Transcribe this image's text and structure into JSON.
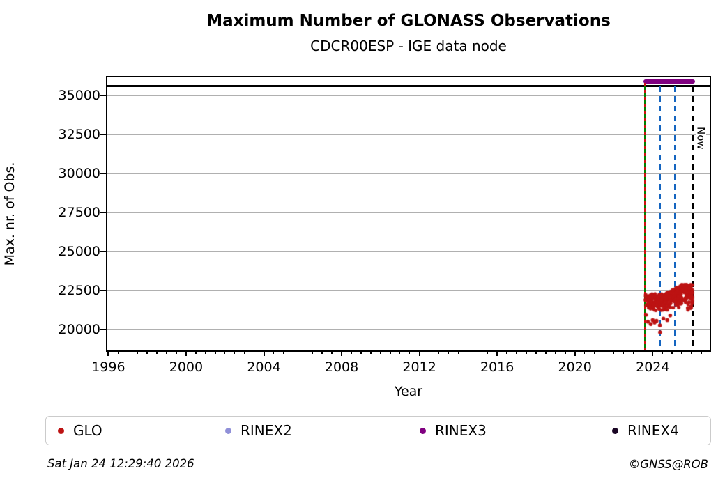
{
  "chart_data": {
    "type": "scatter",
    "title": "Maximum Number of GLONASS Observations",
    "subtitle": "CDCR00ESP - IGE data node",
    "xlabel": "Year",
    "ylabel": "Max. nr. of Obs.",
    "xlim": [
      1995.95,
      2026.93
    ],
    "ylim": [
      18660,
      36160
    ],
    "xticks": [
      1996,
      2000,
      2004,
      2008,
      2012,
      2016,
      2020,
      2024
    ],
    "x_minor_step": 0.5,
    "yticks": [
      20000,
      22500,
      25000,
      27500,
      30000,
      32500,
      35000
    ],
    "grid": {
      "horizontal": true,
      "vertical": false,
      "color": "#b0b0b0"
    },
    "legend_position": "bottom",
    "max_obs_line": {
      "value": 35600,
      "color": "#000000",
      "span": "full-width"
    },
    "rinex3_max_line": {
      "value": 35900,
      "x_start": 2023.62,
      "x_end": 2026.07,
      "color": "#800080"
    },
    "event_lines": [
      {
        "x": 2023.62,
        "style": "solid-green-with-red-dashes",
        "colors": [
          "#008000",
          "#cc1111"
        ],
        "label": ""
      },
      {
        "x": 2024.37,
        "style": "dashed",
        "color": "#1565c0",
        "label": ""
      },
      {
        "x": 2025.16,
        "style": "dashed",
        "color": "#1565c0",
        "label": ""
      },
      {
        "x": 2026.07,
        "style": "dashed",
        "color": "#000000",
        "label": "Now"
      }
    ],
    "glo_scatter": {
      "name": "GLO",
      "color": "#bd1313",
      "marker": "dot",
      "marker_radius": 2.6,
      "band": {
        "x_start": 2023.62,
        "x_end": 2026.05,
        "y_bottom": 21060,
        "y_top_start": 22280,
        "y_top_end": 22880,
        "top_rise_from": 2024.6,
        "top_rise_to": 2025.5,
        "n_points": 380,
        "seed": 42
      },
      "outliers": [
        [
          2023.66,
          20950
        ],
        [
          2023.75,
          20500
        ],
        [
          2023.9,
          20350
        ],
        [
          2024.0,
          20600
        ],
        [
          2024.1,
          20450
        ],
        [
          2024.2,
          20550
        ],
        [
          2024.37,
          20270
        ],
        [
          2024.38,
          19820
        ],
        [
          2024.55,
          20700
        ],
        [
          2024.75,
          20600
        ],
        [
          2024.9,
          20900
        ]
      ]
    }
  },
  "legend": {
    "items": [
      {
        "label": "GLO",
        "color": "#bd1313"
      },
      {
        "label": "RINEX2",
        "color": "#9090d8"
      },
      {
        "label": "RINEX3",
        "color": "#800080"
      },
      {
        "label": "RINEX4",
        "color": "#1a0524"
      }
    ]
  },
  "footer": {
    "timestamp": "Sat Jan 24 12:29:40 2026",
    "credit": "©GNSS@ROB"
  }
}
